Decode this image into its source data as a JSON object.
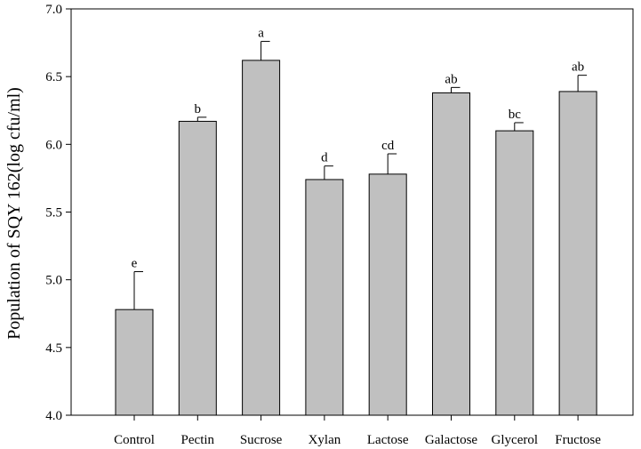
{
  "chart_data": {
    "type": "bar",
    "title": "",
    "xlabel": "",
    "ylabel": "Population of SQY 162(log cfu/ml)",
    "ylim": [
      4.0,
      7.0
    ],
    "yticks": [
      "4.0",
      "4.5",
      "5.0",
      "5.5",
      "6.0",
      "6.5",
      "7.0"
    ],
    "grid": false,
    "categories": [
      "Control",
      "Pectin",
      "Sucrose",
      "Xylan",
      "Lactose",
      "Galactose",
      "Glycerol",
      "Fructose"
    ],
    "values": [
      4.78,
      6.17,
      6.62,
      5.74,
      5.78,
      6.38,
      6.1,
      6.39
    ],
    "errors": [
      0.28,
      0.03,
      0.14,
      0.1,
      0.15,
      0.04,
      0.06,
      0.12
    ],
    "significance": [
      "e",
      "b",
      "a",
      "d",
      "cd",
      "ab",
      "bc",
      "ab"
    ],
    "bar_color": "#c0c0c0",
    "edge_color": "#000000"
  }
}
